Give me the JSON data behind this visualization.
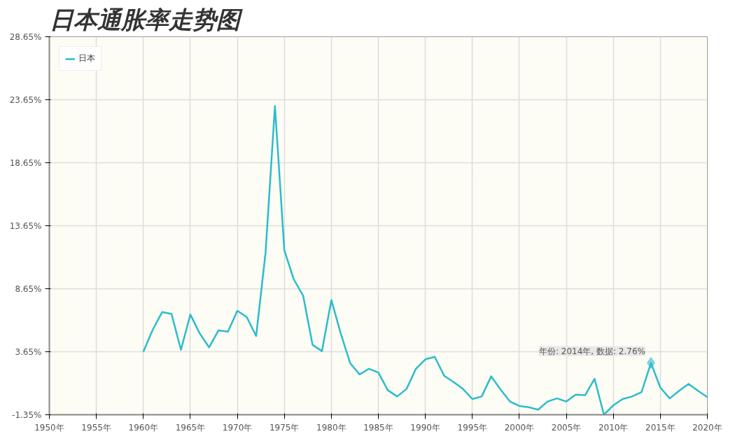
{
  "chart_data": {
    "type": "line",
    "title": "日本通胀率走势图",
    "x": [
      1960,
      1961,
      1962,
      1963,
      1964,
      1965,
      1966,
      1967,
      1968,
      1969,
      1970,
      1971,
      1972,
      1973,
      1974,
      1975,
      1976,
      1977,
      1978,
      1979,
      1980,
      1981,
      1982,
      1983,
      1984,
      1985,
      1986,
      1987,
      1988,
      1989,
      1990,
      1991,
      1992,
      1993,
      1994,
      1995,
      1996,
      1997,
      1998,
      1999,
      2000,
      2001,
      2002,
      2003,
      2004,
      2005,
      2006,
      2007,
      2008,
      2009,
      2010,
      2011,
      2012,
      2013,
      2014,
      2015,
      2016,
      2017,
      2018,
      2019,
      2020
    ],
    "series": [
      {
        "name": "日本",
        "color": "#2bbccc",
        "values": [
          3.65,
          5.4,
          6.8,
          6.65,
          3.8,
          6.6,
          5.1,
          4.0,
          5.35,
          5.25,
          6.9,
          6.4,
          4.9,
          11.5,
          23.15,
          11.7,
          9.4,
          8.1,
          4.2,
          3.7,
          7.75,
          5.1,
          2.75,
          1.85,
          2.3,
          2.0,
          0.6,
          0.1,
          0.7,
          2.3,
          3.05,
          3.25,
          1.75,
          1.25,
          0.7,
          -0.1,
          0.1,
          1.7,
          0.65,
          -0.3,
          -0.65,
          -0.75,
          -0.95,
          -0.3,
          -0.05,
          -0.3,
          0.25,
          0.2,
          1.5,
          -1.35,
          -0.6,
          -0.1,
          0.1,
          0.45,
          2.76,
          0.8,
          -0.05,
          0.55,
          1.1,
          0.55,
          0.05
        ]
      }
    ],
    "xlim": [
      1950,
      2020
    ],
    "ylim": [
      -1.35,
      28.65
    ],
    "xticks": [
      {
        "value": 1950,
        "label": "1950年"
      },
      {
        "value": 1955,
        "label": "1955年"
      },
      {
        "value": 1960,
        "label": "1960年"
      },
      {
        "value": 1965,
        "label": "1965年"
      },
      {
        "value": 1970,
        "label": "1970年"
      },
      {
        "value": 1975,
        "label": "1975年"
      },
      {
        "value": 1980,
        "label": "1980年"
      },
      {
        "value": 1985,
        "label": "1985年"
      },
      {
        "value": 1990,
        "label": "1990年"
      },
      {
        "value": 1995,
        "label": "1995年"
      },
      {
        "value": 2000,
        "label": "2000年"
      },
      {
        "value": 2005,
        "label": "2005年"
      },
      {
        "value": 2010,
        "label": "2010年"
      },
      {
        "value": 2015,
        "label": "2015年"
      },
      {
        "value": 2020,
        "label": "2020年"
      }
    ],
    "yticks": [
      {
        "value": -1.35,
        "label": "-1.35%"
      },
      {
        "value": 3.65,
        "label": "3.65%"
      },
      {
        "value": 8.65,
        "label": "8.65%"
      },
      {
        "value": 13.65,
        "label": "13.65%"
      },
      {
        "value": 18.65,
        "label": "18.65%"
      },
      {
        "value": 23.65,
        "label": "23.65%"
      },
      {
        "value": 28.65,
        "label": "28.65%"
      }
    ],
    "annotations": [
      {
        "text": "年份: 2014年, 数据: 2.76%",
        "x": 2014,
        "y": 2.76
      }
    ],
    "grid": true,
    "legend": "top left",
    "marker": "none",
    "line_style": "solid"
  }
}
